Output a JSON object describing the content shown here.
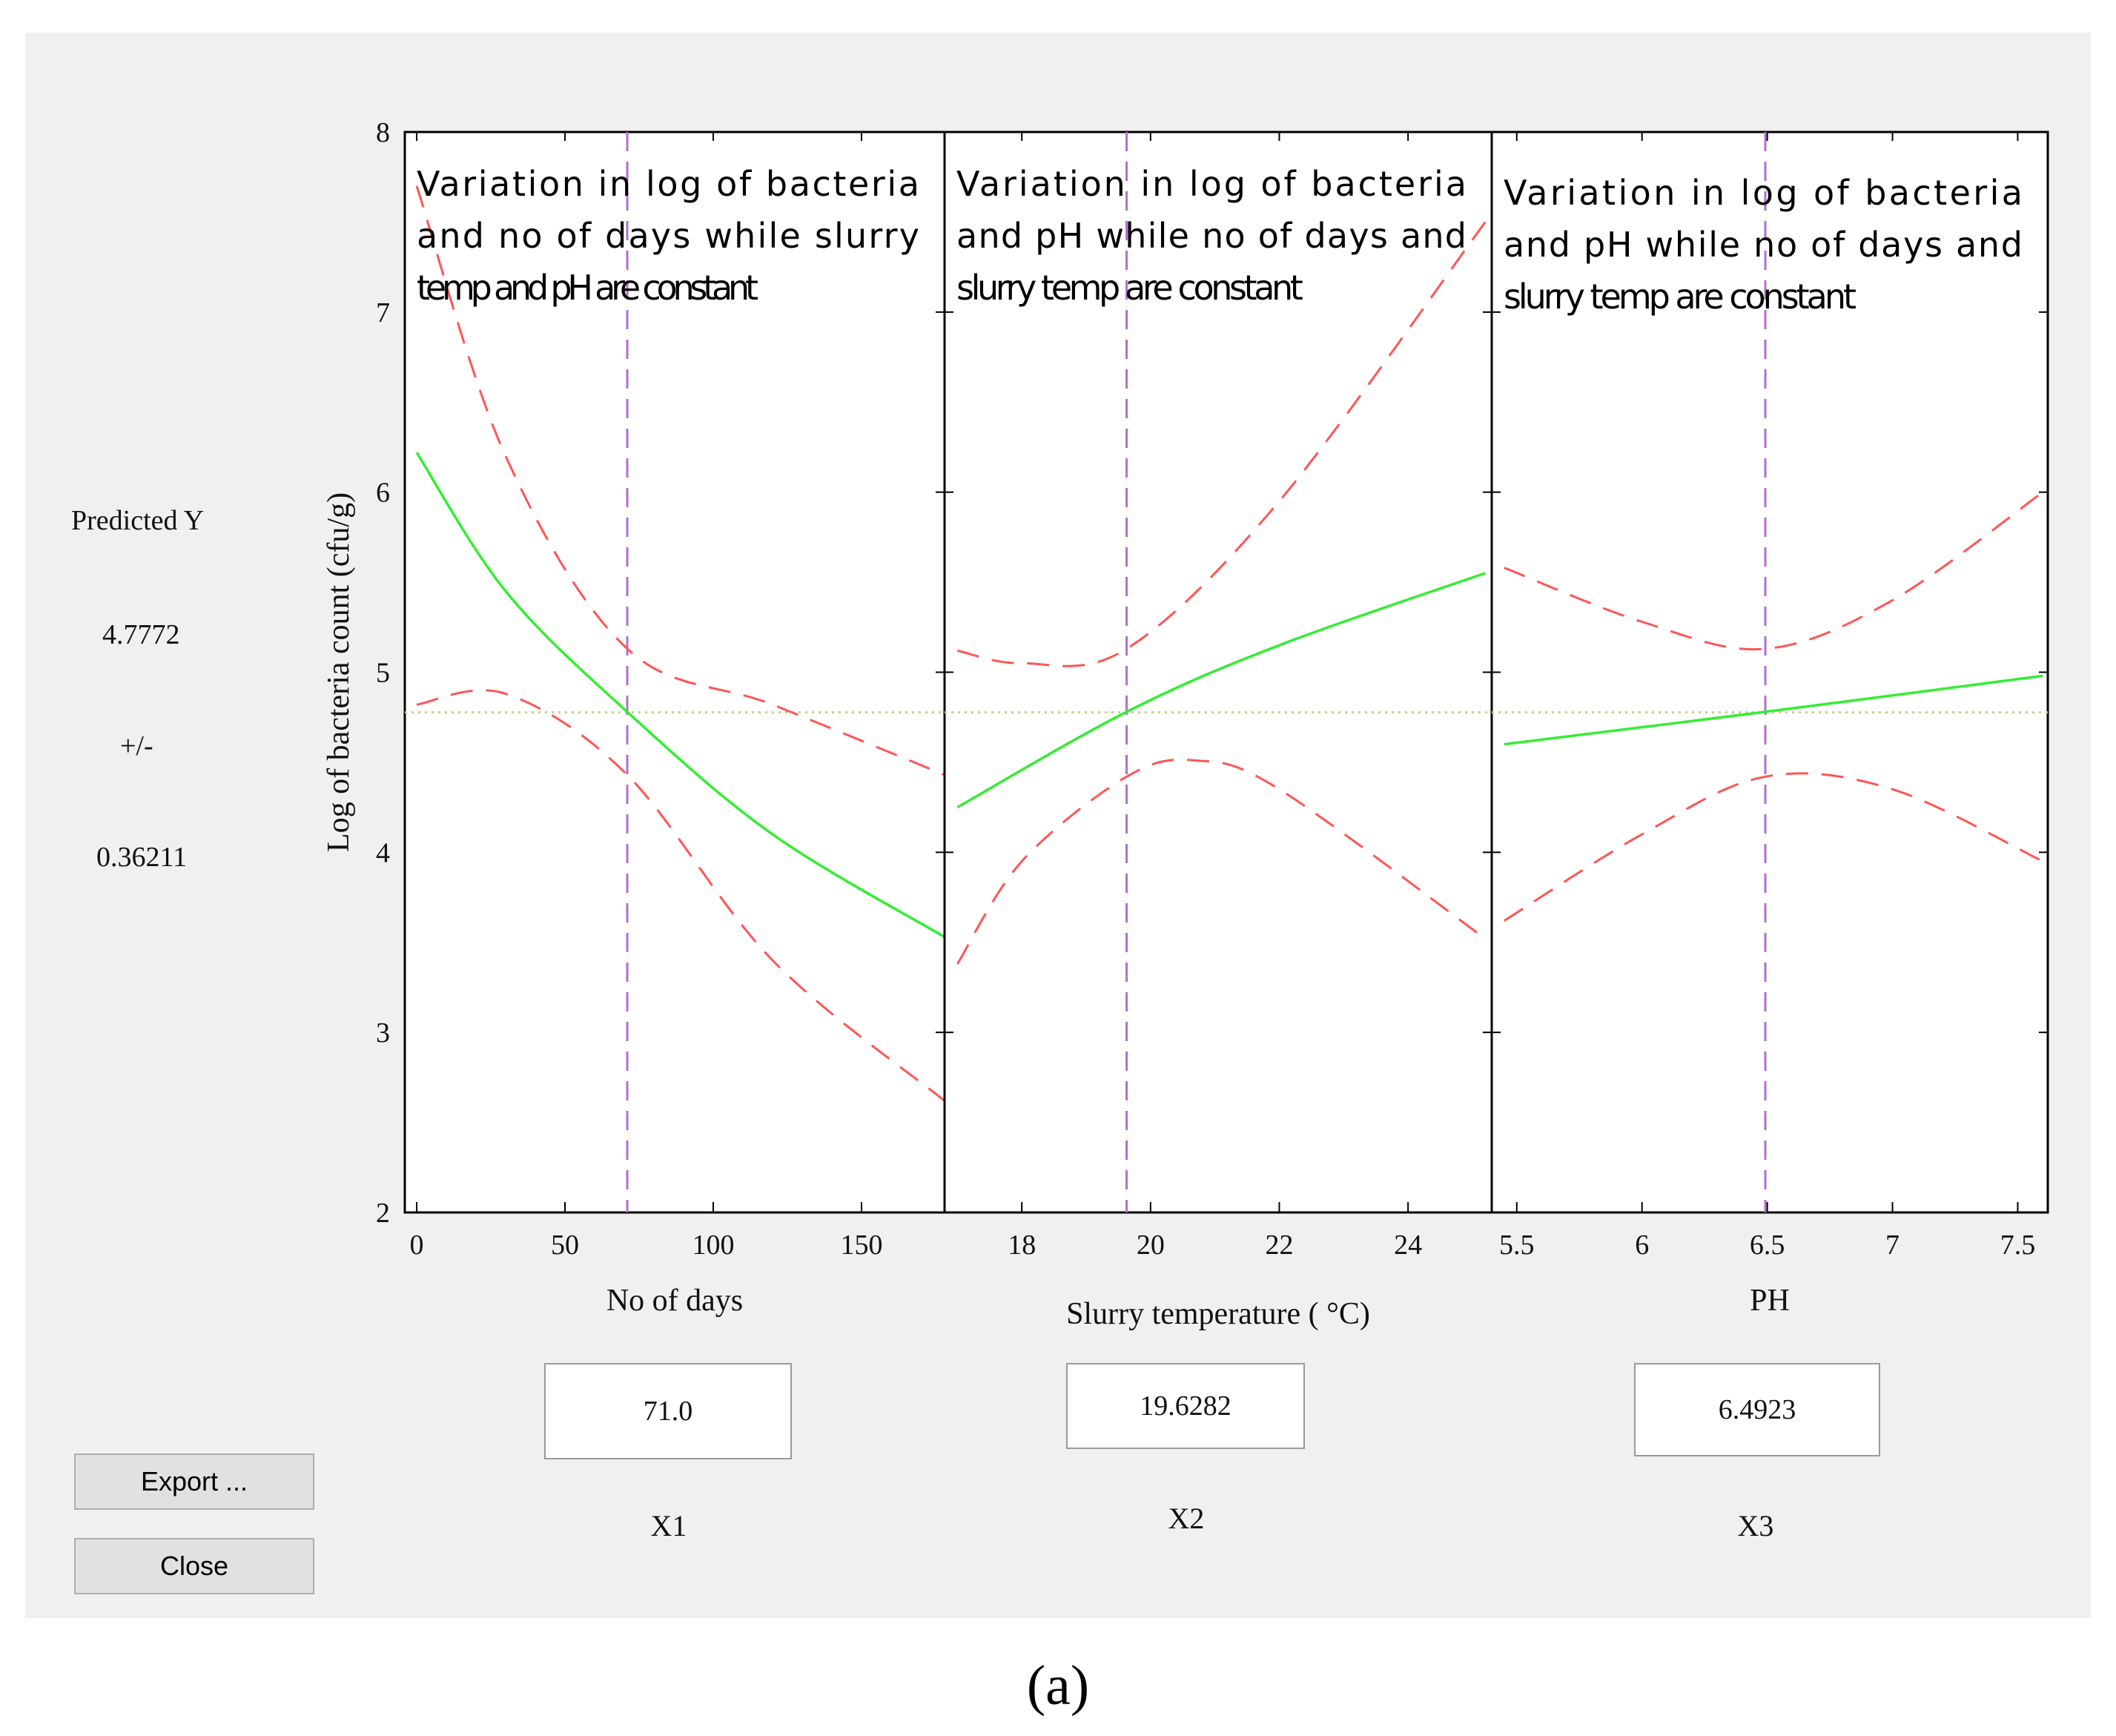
{
  "predicted": {
    "label": "Predicted Y",
    "value": "4.7772",
    "pm": "+/-",
    "error": "0.36211"
  },
  "buttons": {
    "export": "Export ...",
    "close": "Close"
  },
  "caption": "(a)",
  "colors": {
    "fit": "#33ee33",
    "ci": "#ff5555",
    "cursor": "#b070cc",
    "ref": "#c8d080",
    "panel_bg": "#f0f0f0"
  },
  "chart_data": {
    "type": "line",
    "ylabel": "Log of bacteria count (cfu/g)",
    "ylim": [
      2,
      8
    ],
    "yticks": [
      "2",
      "3",
      "4",
      "5",
      "6",
      "7",
      "8"
    ],
    "predicted_reference": 4.7772,
    "panels": [
      {
        "factor": "X1",
        "xlabel": "No of days",
        "xlabel_unit": "",
        "xlim": [
          -4,
          178
        ],
        "xticks": [
          0,
          50,
          100,
          150
        ],
        "xtick_labels": [
          "0",
          "50",
          "100",
          "150"
        ],
        "setting": "71.0",
        "cursor_x": 71,
        "note": [
          "Variation in log of bacteria",
          "and no of days while slurry",
          "temp and pH are constant"
        ],
        "series": [
          {
            "name": "fit",
            "x": [
              0,
              30,
              71,
              120,
              178
            ],
            "y": [
              6.22,
              5.45,
              4.78,
              4.1,
              3.53
            ]
          },
          {
            "name": "upper",
            "x": [
              0,
              30,
              71,
              120,
              178
            ],
            "y": [
              7.7,
              6.2,
              5.13,
              4.82,
              4.43
            ]
          },
          {
            "name": "lower",
            "x": [
              0,
              30,
              71,
              120,
              178
            ],
            "y": [
              4.82,
              4.88,
              4.43,
              3.4,
              2.62
            ]
          }
        ]
      },
      {
        "factor": "X2",
        "xlabel": "Slurry temperature (",
        "xlabel_unit": "°C)",
        "xlim": [
          16.8,
          25.3
        ],
        "xticks": [
          18,
          20,
          22,
          24
        ],
        "xtick_labels": [
          "18",
          "20",
          "22",
          "24"
        ],
        "setting": "19.6282",
        "cursor_x": 19.6282,
        "note": [
          "Variation in log of bacteria",
          "and pH while no of days and",
          "slurry temp are constant"
        ],
        "series": [
          {
            "name": "fit",
            "x": [
              17,
              19.6282,
              22,
              25.2
            ],
            "y": [
              4.25,
              4.78,
              5.15,
              5.55
            ]
          },
          {
            "name": "upper",
            "x": [
              17,
              18,
              19.6282,
              22,
              25.2
            ],
            "y": [
              5.12,
              5.05,
              5.13,
              5.95,
              7.5
            ]
          },
          {
            "name": "lower",
            "x": [
              17,
              18,
              19.6282,
              20.7,
              22,
              25.2
            ],
            "y": [
              3.38,
              3.95,
              4.42,
              4.51,
              4.35,
              3.52
            ]
          }
        ]
      },
      {
        "factor": "X3",
        "xlabel": "PH",
        "xlabel_unit": "",
        "xlim": [
          5.4,
          7.62
        ],
        "xticks": [
          5.5,
          6,
          6.5,
          7,
          7.5
        ],
        "xtick_labels": [
          "5.5",
          "6",
          "6.5",
          "7",
          "7.5"
        ],
        "setting": "6.4923",
        "cursor_x": 6.4923,
        "note": [
          "Variation in log of bacteria",
          "and pH while no of days and",
          "slurry temp are constant"
        ],
        "series": [
          {
            "name": "fit",
            "x": [
              5.45,
              6.4923,
              7.6
            ],
            "y": [
              4.6,
              4.78,
              4.98
            ]
          },
          {
            "name": "upper",
            "x": [
              5.45,
              6.0,
              6.4923,
              7.0,
              7.6
            ],
            "y": [
              5.58,
              5.28,
              5.13,
              5.4,
              6.0
            ]
          },
          {
            "name": "lower",
            "x": [
              5.45,
              6.0,
              6.4923,
              7.0,
              7.6
            ],
            "y": [
              3.62,
              4.1,
              4.42,
              4.35,
              3.95
            ]
          }
        ]
      }
    ]
  }
}
